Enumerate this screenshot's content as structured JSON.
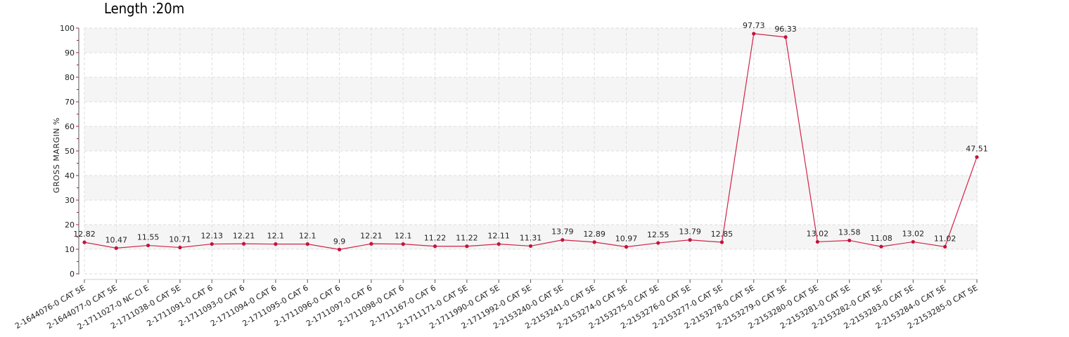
{
  "chart_data": {
    "type": "line",
    "title": "Length :20m",
    "xlabel": "",
    "ylabel": "GROSS MARGIN %",
    "ylim": [
      0,
      100
    ],
    "yticks": [
      0,
      10,
      20,
      30,
      40,
      50,
      60,
      70,
      80,
      90,
      100
    ],
    "grid": true,
    "categories": [
      "2-1644076-0 CAT 5E",
      "2-1644077-0 CAT 5E",
      "2-1711027-0 NC CI E",
      "2-1711038-0 CAT 5E",
      "2-1711091-0 CAT 6",
      "2-1711093-0 CAT 6",
      "2-1711094-0 CAT 6",
      "2-1711095-0 CAT 6",
      "2-1711096-0 CAT 6",
      "2-1711097-0 CAT 6",
      "2-1711098-0 CAT 6",
      "2-1711167-0 CAT 6",
      "2-1711171-0 CAT 5E",
      "2-1711990-0 CAT 5E",
      "2-1711992-0 CAT 5E",
      "2-2153240-0 CAT 5E",
      "2-2153241-0 CAT 5E",
      "2-2153274-0 CAT 5E",
      "2-2153275-0 CAT 5E",
      "2-2153276-0 CAT 5E",
      "2-2153277-0 CAT 5E",
      "2-2153278-0 CAT 5E",
      "2-2153279-0 CAT 5E",
      "2-2153280-0 CAT 5E",
      "2-2153281-0 CAT 5E",
      "2-2153282-0 CAT 5E",
      "2-2153283-0 CAT 5E",
      "2-2153284-0 CAT 5E",
      "2-2153285-0 CAT 5E"
    ],
    "series": [
      {
        "values": [
          12.82,
          10.47,
          11.55,
          10.71,
          12.13,
          12.21,
          12.1,
          12.1,
          9.9,
          12.21,
          12.1,
          11.22,
          11.22,
          12.11,
          11.31,
          13.79,
          12.89,
          10.97,
          12.55,
          13.79,
          12.85,
          97.73,
          96.33,
          13.02,
          13.58,
          11.08,
          13.02,
          11.02,
          47.51
        ]
      }
    ],
    "colors": {
      "line": "#d0244a",
      "marker": "#c0143c",
      "band": "#f5f5f5",
      "grid": "#dddddd"
    }
  }
}
